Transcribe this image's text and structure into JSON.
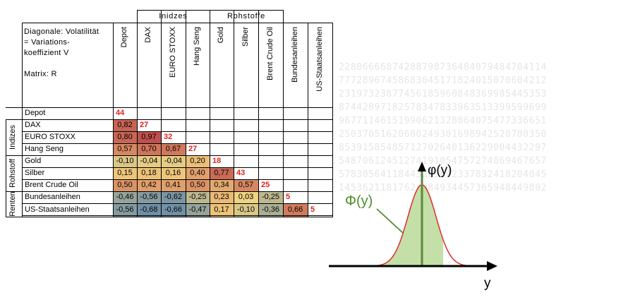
{
  "header": {
    "corner_note": "Diagonale: Volatilität\n= Variations-\nkoeffizient V\n\nMatrix: R",
    "groups": [
      "Inidzes",
      "Rohstoffe"
    ],
    "columns": [
      "Depot",
      "DAX",
      "EURO STOXX",
      "Hang Seng",
      "Gold",
      "Silber",
      "Brent Crude Oil",
      "Bundesanleihen",
      "US-Staatsanleihen"
    ]
  },
  "side_groups": [
    "Indizes",
    "Rohstoff",
    "Renten"
  ],
  "rows": [
    {
      "label": "Depot",
      "values": [
        "44"
      ]
    },
    {
      "label": "DAX",
      "values": [
        "0,82",
        "27"
      ]
    },
    {
      "label": "EURO STOXX",
      "values": [
        "0,80",
        "0,97",
        "32"
      ]
    },
    {
      "label": "Hang Seng",
      "values": [
        "0,57",
        "0,70",
        "0,67",
        "27"
      ]
    },
    {
      "label": "Gold",
      "values": [
        "-0,10",
        "-0,04",
        "-0,04",
        "0,20",
        "18"
      ]
    },
    {
      "label": "Silber",
      "values": [
        "0,15",
        "0,18",
        "0,16",
        "0,40",
        "0,77",
        "43"
      ]
    },
    {
      "label": "Brent Crude Oil",
      "values": [
        "0,50",
        "0,42",
        "0,41",
        "0,50",
        "0,34",
        "0,57",
        "25"
      ]
    },
    {
      "label": "Bundesanleihen",
      "values": [
        "-0,46",
        "-0,56",
        "-0,62",
        "-0,25",
        "0,23",
        "0,03",
        "-0,25",
        "5"
      ]
    },
    {
      "label": "US-Staatsanleihen",
      "values": [
        "-0,56",
        "-0,68",
        "-0,66",
        "-0,47",
        "0,17",
        "-0,10",
        "-0,36",
        "0,66",
        "5"
      ]
    }
  ],
  "colors": {
    "volatility_text": "#e3211c",
    "correlation_high": "#c0504d",
    "correlation_mid": "#f4d580",
    "correlation_low": "#6f8fa6",
    "curve_fill": "#c4dfa8",
    "curve_line": "#e02020",
    "mean_line": "#5a8a3a",
    "Phi_label": "#4e8c2c"
  },
  "background_digits": [
    "22806666874288798736484079484704114",
    "77728967458683045171824015070604212",
    "23197323877456185960848369985445353",
    "87442897182578347833963513399599699",
    "96771146151990621328064075477336651",
    "25037051620680249301698942520780350",
    "85391585485712702640136229004432297",
    "54870612451274191054757274869467657",
    "57830564118443265642337832418204045",
    "14536211817624084934457365948449802"
  ],
  "figure": {
    "phi_pdf_label": "φ(y)",
    "Phi_cdf_label": "Φ(y)",
    "x_axis_label": "y"
  }
}
